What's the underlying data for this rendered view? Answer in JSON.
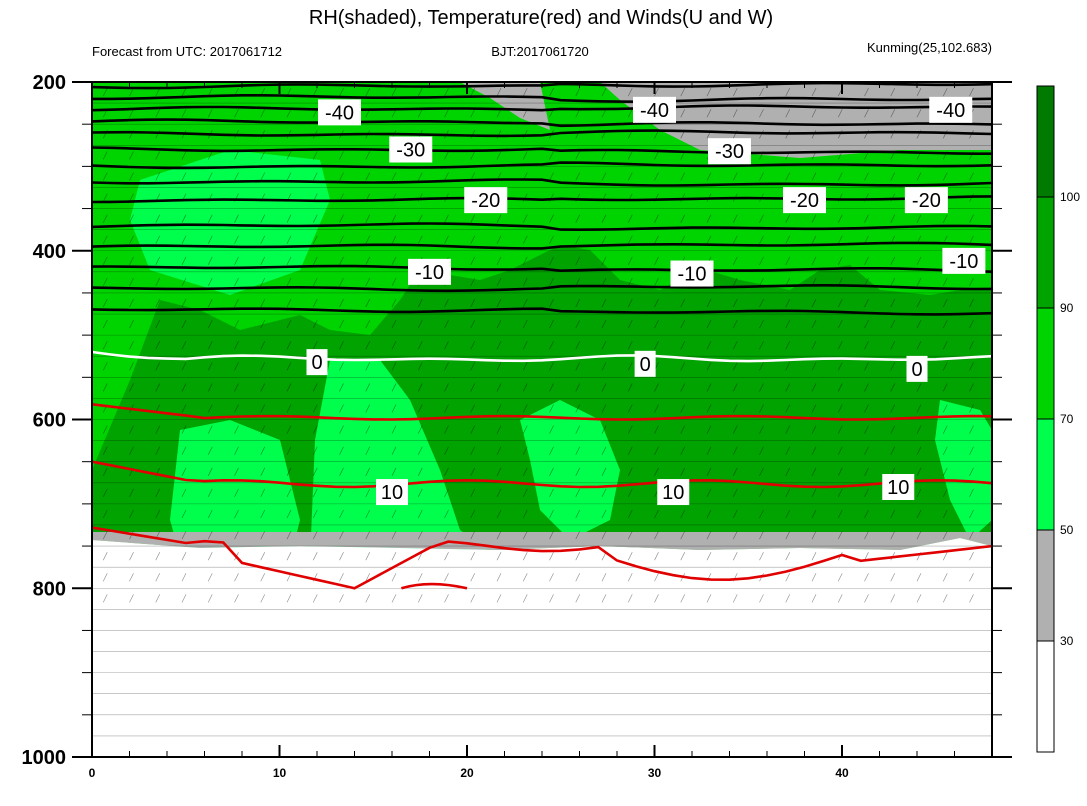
{
  "chart_data": {
    "type": "contour",
    "title": "RH(shaded), Temperature(red) and Winds(U and W)",
    "subtitle_left": "Forecast from UTC: 2017061712",
    "subtitle_center": "BJT:2017061720",
    "subtitle_right": "Kunming(25,102.683)",
    "xlim": [
      0,
      48
    ],
    "ylim": [
      1000,
      200
    ],
    "x_ticks": [
      "0",
      "10",
      "20",
      "30",
      "40"
    ],
    "y_ticks": [
      "200",
      "400",
      "600",
      "800",
      "1000"
    ],
    "colorbar": {
      "levels": [
        "30",
        "50",
        "70",
        "90",
        "100"
      ],
      "colors": [
        "#ffffff",
        "#b0b0b0",
        "#00ff4c",
        "#00d400",
        "#00a300",
        "#007a00"
      ]
    },
    "isotherm_labels": [
      {
        "text": "-40",
        "x": 13.2,
        "p": 236
      },
      {
        "text": "-40",
        "x": 30.0,
        "p": 233
      },
      {
        "text": "-40",
        "x": 45.8,
        "p": 233
      },
      {
        "text": "-30",
        "x": 17.0,
        "p": 280
      },
      {
        "text": "-30",
        "x": 34.0,
        "p": 282
      },
      {
        "text": "-20",
        "x": 21.0,
        "p": 340
      },
      {
        "text": "-20",
        "x": 38.0,
        "p": 340
      },
      {
        "text": "-20",
        "x": 44.5,
        "p": 340
      },
      {
        "text": "-10",
        "x": 18.0,
        "p": 425
      },
      {
        "text": "-10",
        "x": 32.0,
        "p": 427
      },
      {
        "text": "-10",
        "x": 46.5,
        "p": 412
      },
      {
        "text": "0",
        "x": 12.0,
        "p": 532
      },
      {
        "text": "0",
        "x": 29.5,
        "p": 534
      },
      {
        "text": "0",
        "x": 44.0,
        "p": 540
      },
      {
        "text": "10",
        "x": 16.0,
        "p": 686
      },
      {
        "text": "10",
        "x": 31.0,
        "p": 686
      },
      {
        "text": "10",
        "x": 43.0,
        "p": 680
      }
    ]
  }
}
